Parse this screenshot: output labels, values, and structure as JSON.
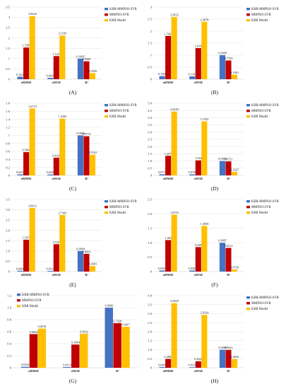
{
  "colors": {
    "series": [
      "#4472C4",
      "#C00000",
      "#FFC000"
    ],
    "grid": "#d9d9d9",
    "axis": "#bfbfbf"
  },
  "series_names": [
    "KRR-MMPSO-SVR",
    "MMPSO-SVR",
    "KRR Model"
  ],
  "categories": [
    "σRMSE",
    "σMAE",
    "R²"
  ],
  "chart_data": [
    {
      "type": "bar",
      "panel": "(A)",
      "legend": "top-right",
      "ylim": [
        0,
        3.5
      ],
      "yticks": [
        "0",
        "0.5",
        "1",
        "1.5",
        "2",
        "2.5",
        "3",
        "3.5"
      ],
      "categories": [
        "σRMSE",
        "σMAE",
        "R²"
      ],
      "series": [
        {
          "name": "KRR-MMPSO-SVR",
          "values": [
            0.1225,
            0.0641,
            0.9995
          ],
          "labels": [
            "0.1225",
            "0.0641",
            "0.9995"
          ]
        },
        {
          "name": "MMPSO-SVR",
          "values": [
            1.5385,
            1.1225,
            0.8686
          ],
          "labels": [
            "1.5385",
            "1.1225",
            "0.8686"
          ]
        },
        {
          "name": "KRR Model",
          "values": [
            3.0626,
            2.1199,
            0.2956
          ],
          "labels": [
            "3.0626",
            "2.1199",
            "0.2956"
          ]
        }
      ]
    },
    {
      "type": "bar",
      "panel": "(B)",
      "legend": "top-right",
      "ylim": [
        0,
        3
      ],
      "yticks": [
        "0",
        "0.5",
        "1",
        "1.5",
        "2",
        "2.5",
        "3"
      ],
      "categories": [
        "σRMSE",
        "σMAE",
        "R²"
      ],
      "series": [
        {
          "name": "KRR-MMPSO-SVR",
          "values": [
            0.1289,
            0.1182,
            0.9998
          ],
          "labels": [
            "0.1289",
            "0.1182",
            "0.9998"
          ]
        },
        {
          "name": "MMPSO-SVR",
          "values": [
            1.7991,
            1.2943,
            0.7794
          ],
          "labels": [
            "1.7991",
            "1.2943",
            "0.7794"
          ]
        },
        {
          "name": "KRR Model",
          "values": [
            2.5853,
            2.3878,
            0.1861
          ],
          "labels": [
            "2.5853",
            "2.3878",
            "0.1861"
          ]
        }
      ]
    },
    {
      "type": "bar",
      "panel": "(C)",
      "legend": "top-right",
      "ylim": [
        0,
        1.8
      ],
      "yticks": [
        "0",
        "0.2",
        "0.4",
        "0.6",
        "0.8",
        "1",
        "1.2",
        "1.4",
        "1.6",
        "1.8"
      ],
      "categories": [
        "σRMSE",
        "σMAE",
        "R²"
      ],
      "series": [
        {
          "name": "KRR-MMPSO-SVR",
          "values": [
            0.0254,
            0.0228,
            0.9985
          ],
          "labels": [
            "0.0254",
            "0.0228",
            "0.9985"
          ]
        },
        {
          "name": "MMPSO-SVR",
          "values": [
            0.5804,
            0.4429,
            0.9774
          ],
          "labels": [
            "0.5804",
            "0.4429",
            "0.9774"
          ]
        },
        {
          "name": "KRR Model",
          "values": [
            1.6719,
            1.4183,
            0.5162
          ],
          "labels": [
            "1.6719",
            "1.4183",
            "0.5162"
          ]
        }
      ]
    },
    {
      "type": "bar",
      "panel": "(D)",
      "legend": "top-right",
      "ylim": [
        0,
        5
      ],
      "yticks": [
        "0",
        "0.5",
        "1.0",
        "1.5",
        "2.0",
        "2.5",
        "3.0",
        "3.5",
        "4.0",
        "4.5",
        "5.0"
      ],
      "categories": [
        "σRMSE",
        "σMAE",
        "R²"
      ],
      "series": [
        {
          "name": "KRR-MMPSO-SVR",
          "values": [
            0.0774,
            0.0708,
            0.9999
          ],
          "labels": [
            "0.0774",
            "0.0708",
            "0.9999"
          ]
        },
        {
          "name": "MMPSO-SVR",
          "values": [
            1.3579,
            1.044,
            0.9721
          ],
          "labels": [
            "1.3579",
            "1.044",
            "0.9721"
          ]
        },
        {
          "name": "KRR Model",
          "values": [
            4.4249,
            3.7432,
            0.2427
          ],
          "labels": [
            "4.4249",
            "3.7432",
            "0.2427"
          ]
        }
      ]
    },
    {
      "type": "bar",
      "panel": "(E)",
      "legend": "top-right",
      "ylim": [
        0,
        3.5
      ],
      "yticks": [
        "0",
        "0.5",
        "1.0",
        "1.5",
        "2.0",
        "2.5",
        "3.0",
        "3.5"
      ],
      "categories": [
        "σRMSE",
        "σMAE",
        "R²"
      ],
      "series": [
        {
          "name": "KRR-MMPSO-SVR",
          "values": [
            0.0409,
            0.0317,
            0.9999
          ],
          "labels": [
            "0.0409",
            "0.0317",
            "0.9999"
          ]
        },
        {
          "name": "MMPSO-SVR",
          "values": [
            1.5479,
            1.3291,
            0.8602
          ],
          "labels": [
            "1.5479",
            "1.3291",
            "0.8602"
          ]
        },
        {
          "name": "KRR Model",
          "values": [
            3.0913,
            2.7442,
            0.2681
          ],
          "labels": [
            "3.0913",
            "2.7442",
            "0.2681"
          ]
        }
      ]
    },
    {
      "type": "bar",
      "panel": "(F)",
      "legend": "top-right",
      "ylim": [
        0,
        2.5
      ],
      "yticks": [
        "0",
        "0.5",
        "1.0",
        "1.5",
        "2.0",
        "2.5"
      ],
      "categories": [
        "σRMSE",
        "σMAE",
        "R²"
      ],
      "series": [
        {
          "name": "KRR-MMPSO-SVR",
          "values": [
            0.0395,
            0.0383,
            0.9997
          ],
          "labels": [
            "0.0395",
            "0.0383",
            "0.9997"
          ]
        },
        {
          "name": "MMPSO-SVR",
          "values": [
            1.093,
            0.849,
            0.8212
          ],
          "labels": [
            "1.093",
            "0.849",
            "0.8212"
          ]
        },
        {
          "name": "KRR Model",
          "values": [
            1.9703,
            1.5858,
            0.0739
          ],
          "labels": [
            "1.9703",
            "1.5858",
            "0.0739"
          ]
        }
      ]
    },
    {
      "type": "bar",
      "panel": "(G)",
      "legend": "top-left",
      "ylim": [
        0,
        1.2
      ],
      "yticks": [
        "0",
        "0.2",
        "0.4",
        "0.6",
        "0.8",
        "1.0",
        "1.2"
      ],
      "categories": [
        "σRMSE",
        "σMAE",
        "R²"
      ],
      "series": [
        {
          "name": "KRR-MMPSO-SVR",
          "values": [
            0.0161,
            0.0119,
            0.9996
          ],
          "labels": [
            "0.0161",
            "0.0119",
            "0.9996"
          ]
        },
        {
          "name": "MMPSO-SVR",
          "values": [
            0.5604,
            0.3864,
            0.7428
          ],
          "labels": [
            "0.5604",
            "0.3864",
            "0.7428"
          ]
        },
        {
          "name": "KRR Model",
          "values": [
            0.6518,
            0.5662,
            0.6817
          ],
          "labels": [
            "0.6518",
            "0.5662",
            "0.6817"
          ]
        }
      ]
    },
    {
      "type": "bar",
      "panel": "(H)",
      "legend": "top-right",
      "ylim": [
        0,
        4
      ],
      "yticks": [
        "0",
        "0.5",
        "1.0",
        "1.5",
        "2.0",
        "2.5",
        "3.0",
        "3.5",
        "4.0"
      ],
      "categories": [
        "σRMSE",
        "σMAE",
        "R²"
      ],
      "series": [
        {
          "name": "KRR-MMPSO-SVR",
          "values": [
            0.0405,
            0.0319,
            0.9999
          ],
          "labels": [
            "0.0405",
            "0.0319",
            "0.9999"
          ]
        },
        {
          "name": "MMPSO-SVR",
          "values": [
            0.4899,
            0.3629,
            0.9923
          ],
          "labels": [
            "0.4899",
            "0.3629",
            "0.9923"
          ]
        },
        {
          "name": "KRR Model",
          "values": [
            3.5809,
            2.9334,
            0.4838
          ],
          "labels": [
            "3.5809",
            "2.9334",
            "0.4838"
          ]
        }
      ]
    }
  ]
}
